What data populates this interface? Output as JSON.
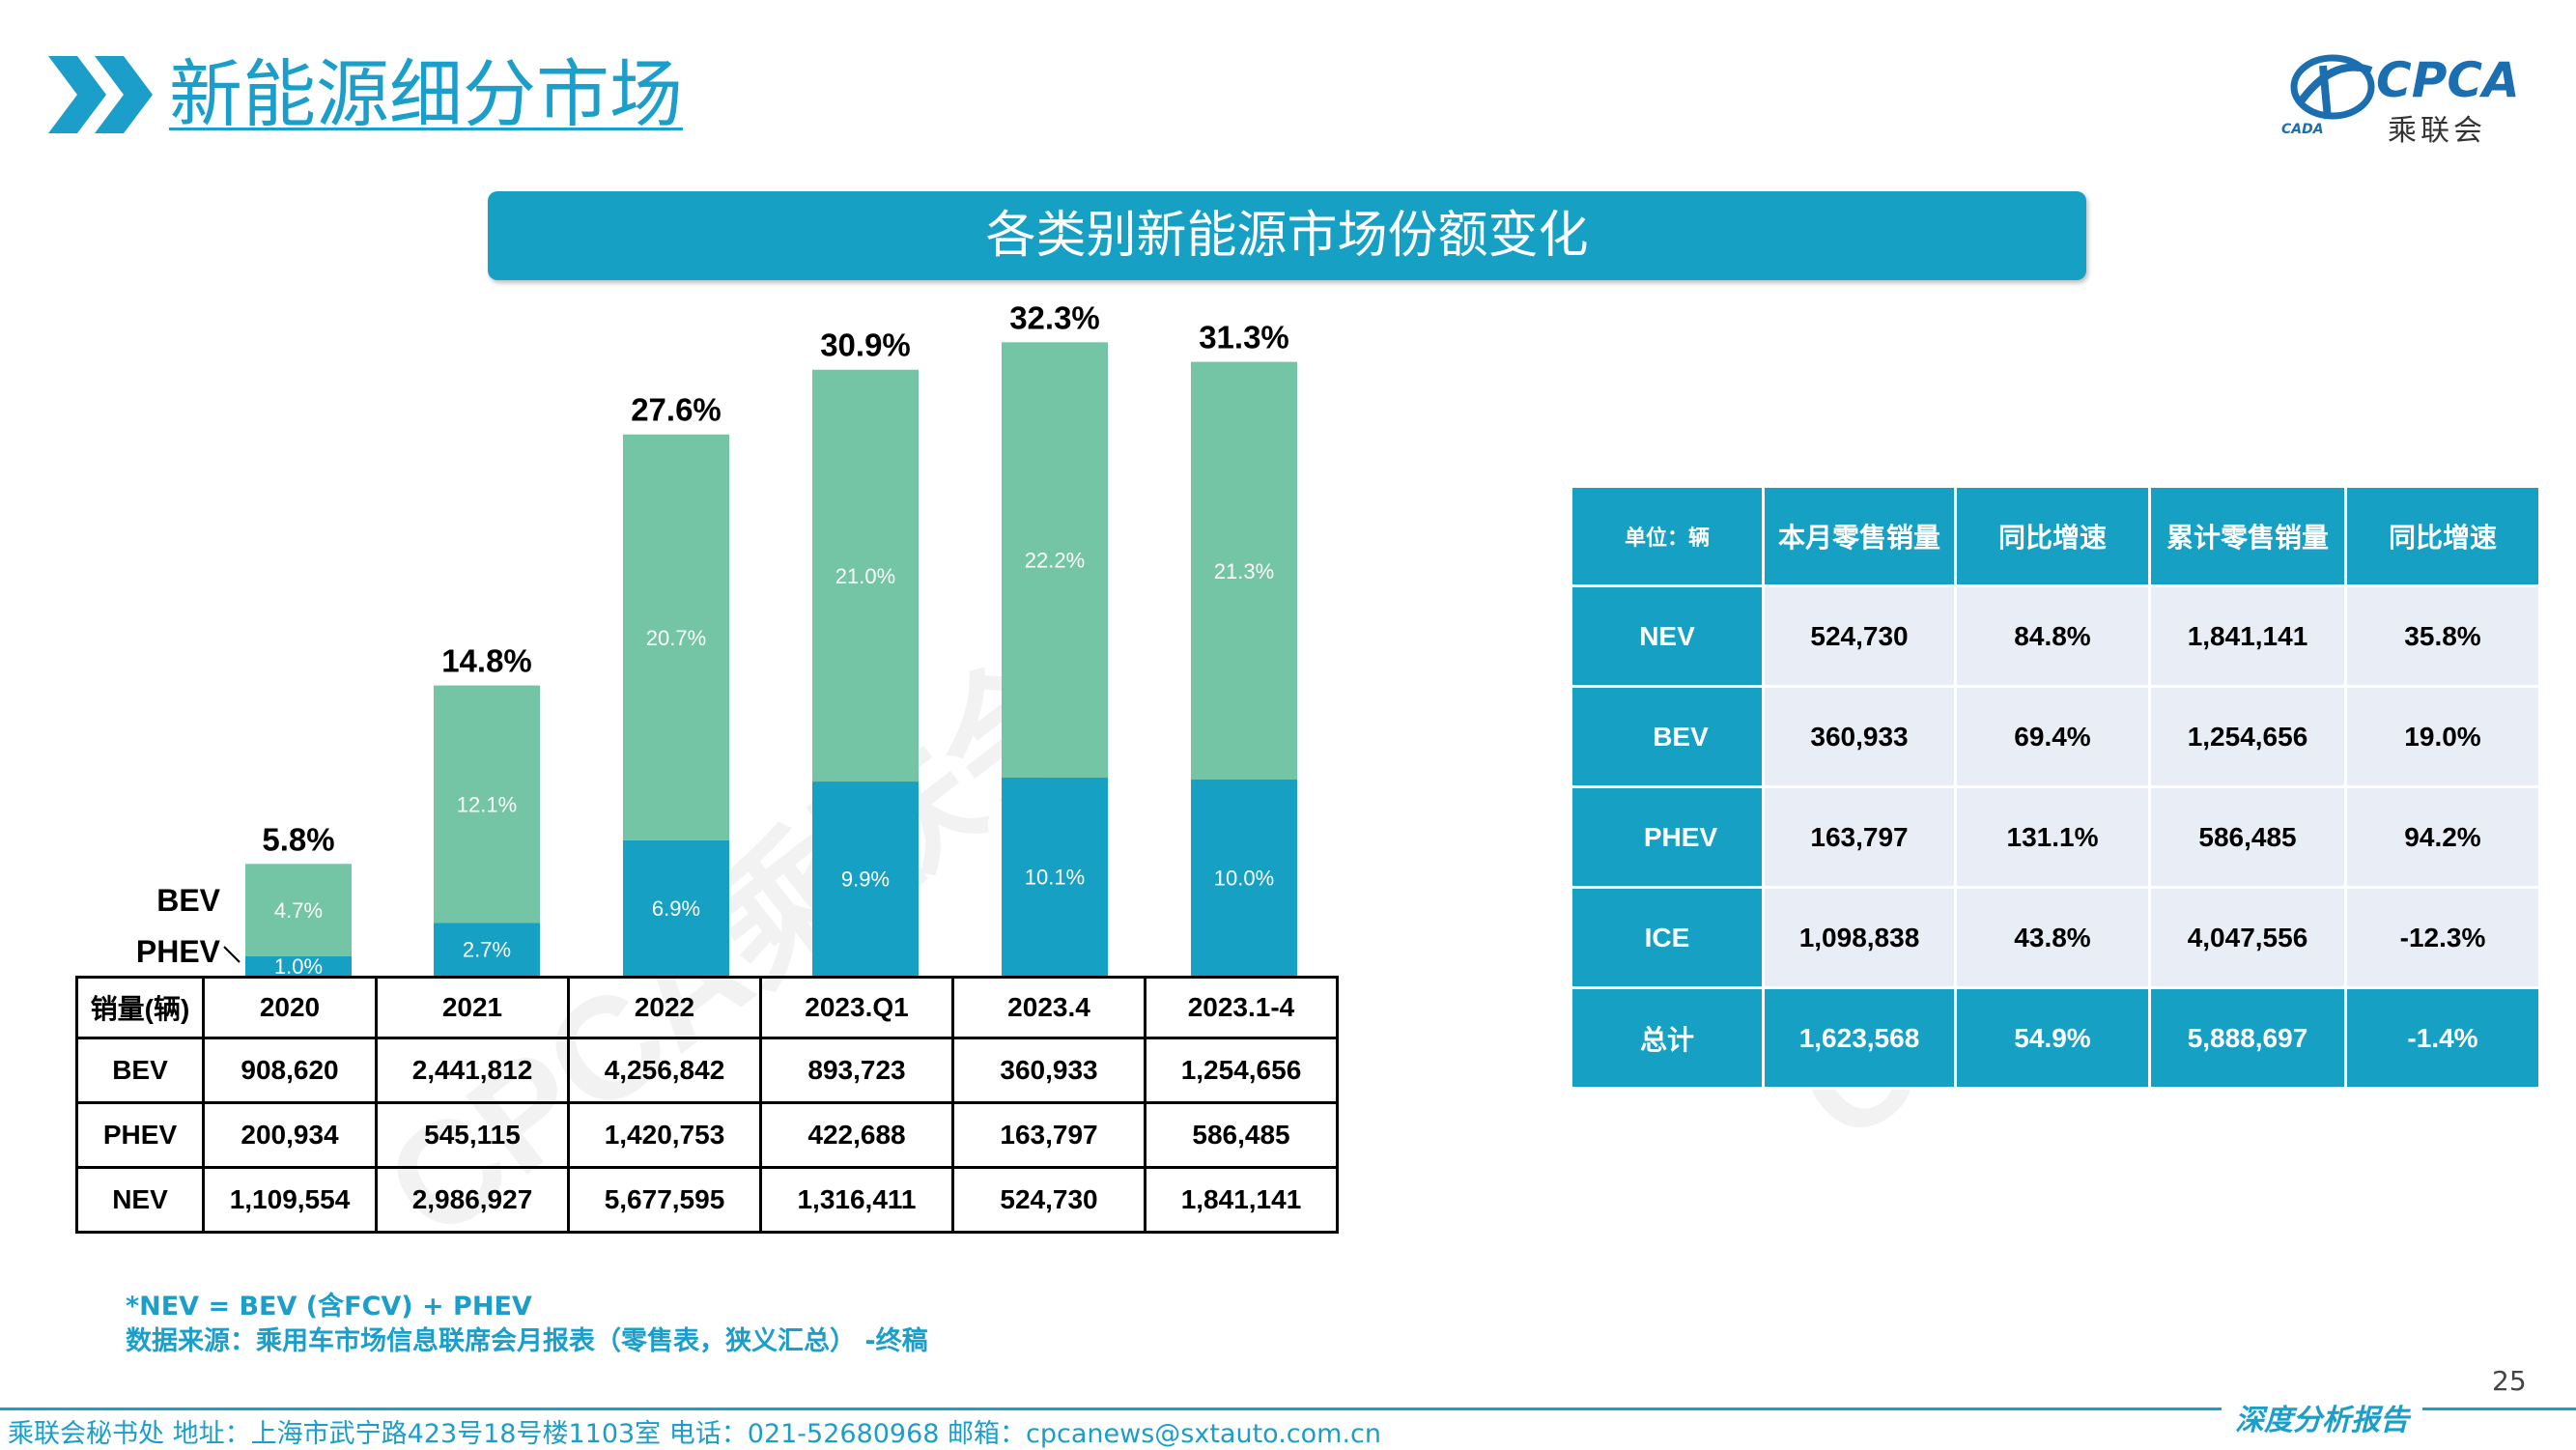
{
  "header": {
    "title": "新能源细分市场",
    "logo_text": "CPCA",
    "logo_cn": "乘联会",
    "logo_small": "CADA"
  },
  "banner": {
    "title": "各类别新能源市场份额变化"
  },
  "chart_data": {
    "type": "bar",
    "stacked": true,
    "categories": [
      "2020",
      "2021",
      "2022",
      "2023.Q1",
      "2023.4",
      "2023.1-4"
    ],
    "series": [
      {
        "name": "PHEV",
        "values": [
          1.0,
          2.7,
          6.9,
          9.9,
          10.1,
          10.0
        ],
        "color": "#16a0c4"
      },
      {
        "name": "BEV",
        "values": [
          4.7,
          12.1,
          20.7,
          21.0,
          22.2,
          21.3
        ],
        "color": "#74c4a6"
      }
    ],
    "totals": [
      5.8,
      14.8,
      27.6,
      30.9,
      32.3,
      31.3
    ],
    "value_format": "%",
    "ylim": [
      0,
      35
    ],
    "grid": false
  },
  "sales_table": {
    "header": [
      "销量(辆)",
      "2020",
      "2021",
      "2022",
      "2023.Q1",
      "2023.4",
      "2023.1-4"
    ],
    "rows": [
      [
        "BEV",
        "908,620",
        "2,441,812",
        "4,256,842",
        "893,723",
        "360,933",
        "1,254,656"
      ],
      [
        "PHEV",
        "200,934",
        "545,115",
        "1,420,753",
        "422,688",
        "163,797",
        "586,485"
      ],
      [
        "NEV",
        "1,109,554",
        "2,986,927",
        "5,677,595",
        "1,316,411",
        "524,730",
        "1,841,141"
      ]
    ]
  },
  "stats_table": {
    "header": [
      "单位：辆",
      "本月零售销量",
      "同比增速",
      "累计零售销量",
      "同比增速"
    ],
    "rows": [
      [
        "NEV",
        "524,730",
        "84.8%",
        "1,841,141",
        "35.8%"
      ],
      [
        "BEV",
        "360,933",
        "69.4%",
        "1,254,656",
        "19.0%"
      ],
      [
        "PHEV",
        "163,797",
        "131.1%",
        "586,485",
        "94.2%"
      ],
      [
        "ICE",
        "1,098,838",
        "43.8%",
        "4,047,556",
        "-12.3%"
      ],
      [
        "总计",
        "1,623,568",
        "54.9%",
        "5,888,697",
        "-1.4%"
      ]
    ]
  },
  "notes": {
    "line1": "*NEV = BEV (含FCV) + PHEV",
    "line2": "数据来源：乘用车市场信息联席会月报表（零售表，狭义汇总） -终稿"
  },
  "page_number": "25",
  "footer": {
    "text": "乘联会秘书处   地址：上海市武宁路423号18号楼1103室   电话：021-52680968   邮箱：cpcanews@sxtauto.com.cn",
    "report_label": "深度分析报告"
  },
  "watermark": "CPCA乘联会"
}
